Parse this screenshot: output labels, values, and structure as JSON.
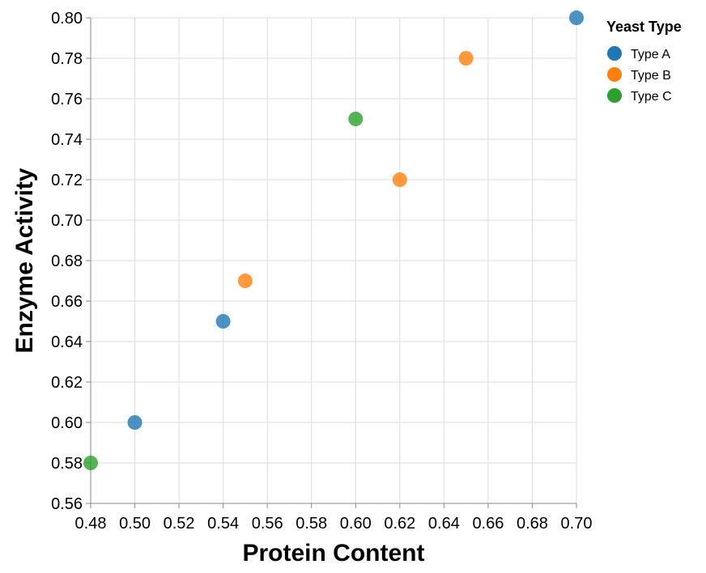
{
  "chart_data": {
    "type": "scatter",
    "xlabel": "Protein Content",
    "ylabel": "Enzyme Activity",
    "xlim": [
      0.48,
      0.7
    ],
    "ylim": [
      0.56,
      0.8
    ],
    "xticks": [
      "0.48",
      "0.50",
      "0.52",
      "0.54",
      "0.56",
      "0.58",
      "0.60",
      "0.62",
      "0.64",
      "0.66",
      "0.68",
      "0.70"
    ],
    "yticks": [
      "0.56",
      "0.58",
      "0.60",
      "0.62",
      "0.64",
      "0.66",
      "0.68",
      "0.70",
      "0.72",
      "0.74",
      "0.76",
      "0.78",
      "0.80"
    ],
    "grid": true,
    "legend": {
      "title": "Yeast Type",
      "placement": "top-right"
    },
    "series": [
      {
        "name": "Type A",
        "color": "#1f77b4",
        "points": [
          {
            "x": 0.7,
            "y": 0.8
          },
          {
            "x": 0.54,
            "y": 0.65
          },
          {
            "x": 0.5,
            "y": 0.6
          }
        ]
      },
      {
        "name": "Type B",
        "color": "#ff7f0e",
        "points": [
          {
            "x": 0.65,
            "y": 0.78
          },
          {
            "x": 0.62,
            "y": 0.72
          },
          {
            "x": 0.55,
            "y": 0.67
          }
        ]
      },
      {
        "name": "Type C",
        "color": "#2ca02c",
        "points": [
          {
            "x": 0.6,
            "y": 0.75
          },
          {
            "x": 0.48,
            "y": 0.58
          }
        ]
      }
    ]
  }
}
